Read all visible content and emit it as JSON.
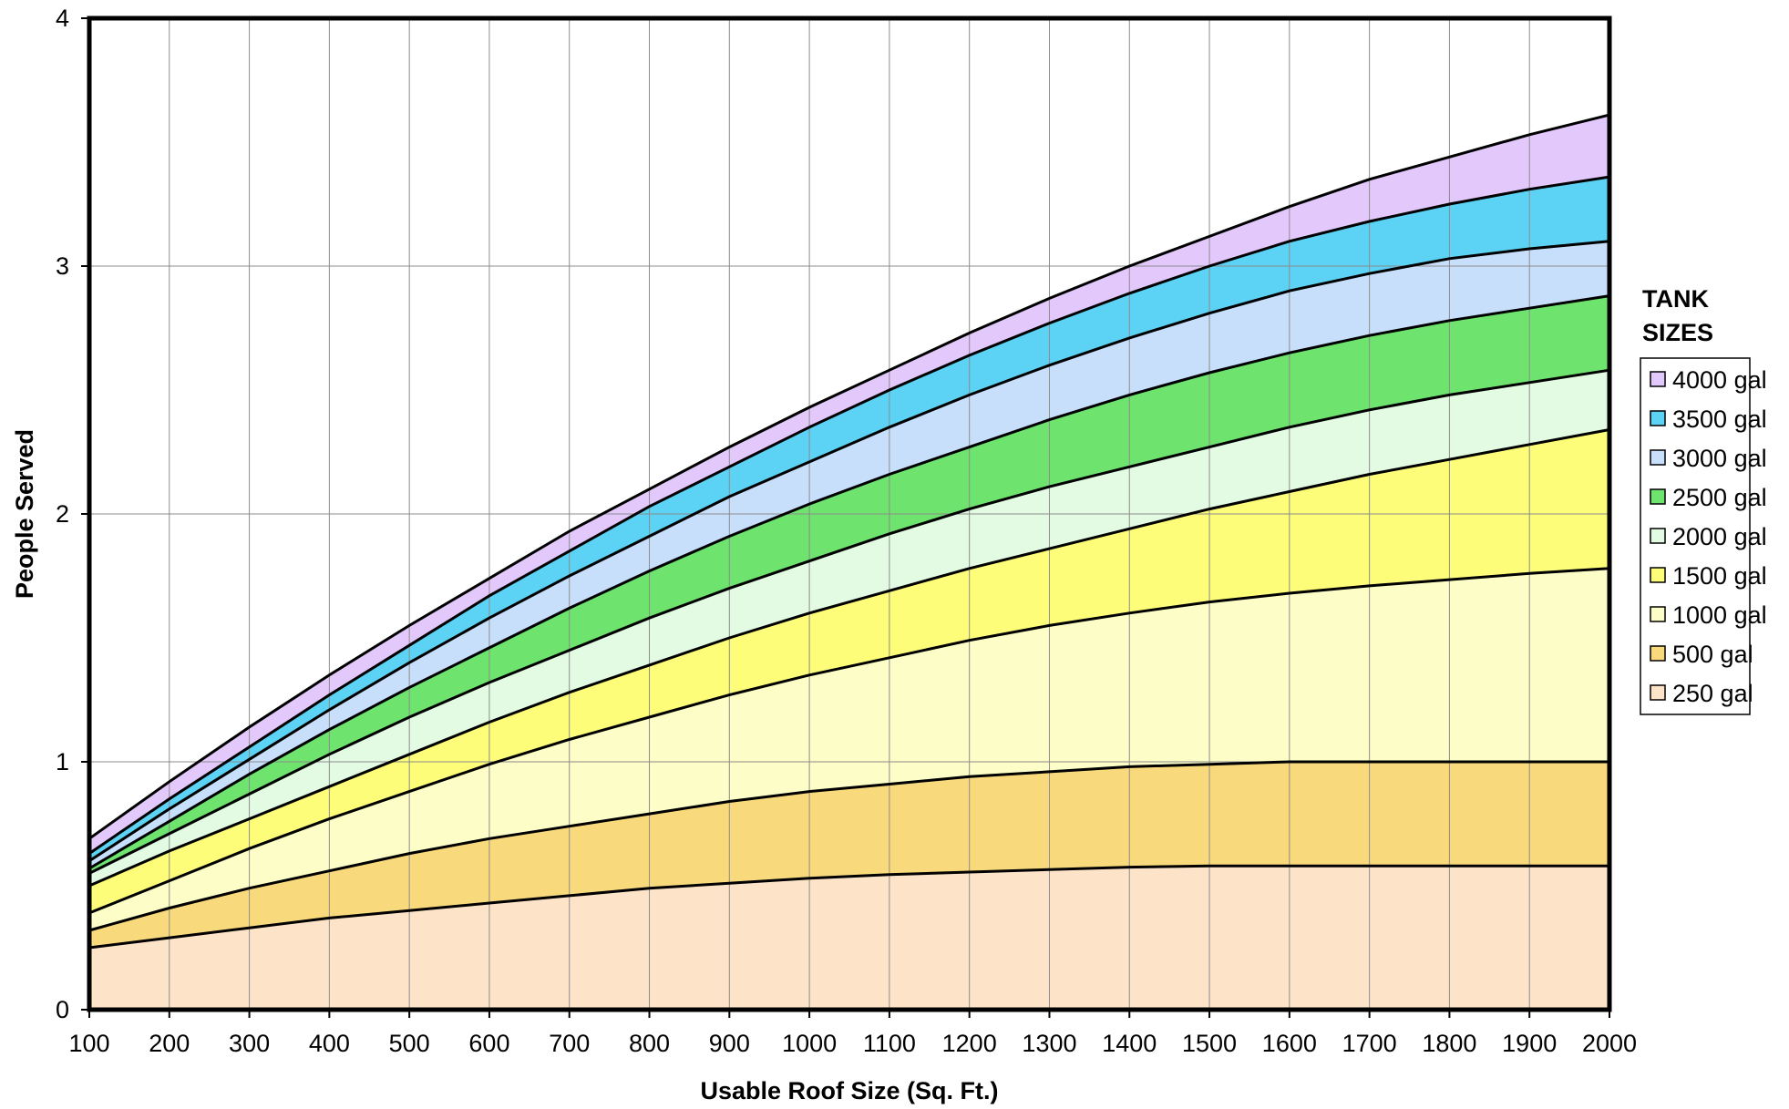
{
  "chart_data": {
    "type": "area",
    "xlabel": "Usable Roof Size (Sq. Ft.)",
    "ylabel": "People Served",
    "xlim": [
      100,
      2000
    ],
    "ylim": [
      0,
      4
    ],
    "x_ticks": [
      "100",
      "200",
      "300",
      "400",
      "500",
      "600",
      "700",
      "800",
      "900",
      "1000",
      "1100",
      "1200",
      "1300",
      "1400",
      "1500",
      "1600",
      "1700",
      "1800",
      "1900",
      "2000"
    ],
    "y_ticks": [
      "0",
      "1",
      "2",
      "3",
      "4"
    ],
    "grid": true,
    "legend": {
      "title_line1": "TANK",
      "title_line2": "SIZES",
      "placement": "right"
    },
    "x": [
      100,
      200,
      300,
      400,
      500,
      600,
      700,
      800,
      900,
      1000,
      1100,
      1200,
      1300,
      1400,
      1500,
      1600,
      1700,
      1800,
      1900,
      2000
    ],
    "series": [
      {
        "name": "250 gal",
        "color": "#fde3c8",
        "values": [
          0.25,
          0.29,
          0.33,
          0.37,
          0.4,
          0.43,
          0.46,
          0.49,
          0.51,
          0.53,
          0.545,
          0.555,
          0.565,
          0.575,
          0.58,
          0.58,
          0.58,
          0.58,
          0.58,
          0.58
        ]
      },
      {
        "name": "500 gal",
        "color": "#f8d97c",
        "values": [
          0.32,
          0.41,
          0.49,
          0.56,
          0.63,
          0.69,
          0.74,
          0.79,
          0.84,
          0.88,
          0.91,
          0.94,
          0.96,
          0.98,
          0.99,
          1.0,
          1.0,
          1.0,
          1.0,
          1.0
        ]
      },
      {
        "name": "1000 gal",
        "color": "#fdfdc8",
        "values": [
          0.39,
          0.52,
          0.65,
          0.77,
          0.88,
          0.99,
          1.09,
          1.18,
          1.27,
          1.35,
          1.42,
          1.49,
          1.55,
          1.6,
          1.645,
          1.68,
          1.71,
          1.735,
          1.76,
          1.78
        ]
      },
      {
        "name": "1500 gal",
        "color": "#fdfd7a",
        "values": [
          0.5,
          0.64,
          0.77,
          0.9,
          1.03,
          1.16,
          1.28,
          1.39,
          1.5,
          1.6,
          1.69,
          1.78,
          1.86,
          1.94,
          2.02,
          2.09,
          2.16,
          2.22,
          2.28,
          2.34
        ]
      },
      {
        "name": "2000 gal",
        "color": "#e3fbe3",
        "values": [
          0.55,
          0.71,
          0.87,
          1.03,
          1.18,
          1.32,
          1.45,
          1.58,
          1.7,
          1.81,
          1.92,
          2.02,
          2.11,
          2.19,
          2.27,
          2.35,
          2.42,
          2.48,
          2.53,
          2.58
        ]
      },
      {
        "name": "2500 gal",
        "color": "#6ee36e",
        "values": [
          0.57,
          0.76,
          0.95,
          1.13,
          1.3,
          1.46,
          1.62,
          1.77,
          1.91,
          2.04,
          2.16,
          2.27,
          2.38,
          2.48,
          2.57,
          2.65,
          2.72,
          2.78,
          2.83,
          2.88
        ]
      },
      {
        "name": "3000 gal",
        "color": "#c8dffb",
        "values": [
          0.6,
          0.81,
          1.01,
          1.21,
          1.4,
          1.58,
          1.75,
          1.91,
          2.07,
          2.21,
          2.35,
          2.48,
          2.6,
          2.71,
          2.81,
          2.9,
          2.97,
          3.03,
          3.07,
          3.1
        ]
      },
      {
        "name": "3500 gal",
        "color": "#5cd2f4",
        "values": [
          0.63,
          0.85,
          1.06,
          1.27,
          1.47,
          1.67,
          1.85,
          2.03,
          2.19,
          2.35,
          2.5,
          2.64,
          2.77,
          2.89,
          3.0,
          3.1,
          3.18,
          3.25,
          3.31,
          3.36
        ]
      },
      {
        "name": "4000 gal",
        "color": "#e3c8fb",
        "values": [
          0.69,
          0.92,
          1.14,
          1.35,
          1.55,
          1.74,
          1.93,
          2.1,
          2.27,
          2.43,
          2.58,
          2.73,
          2.87,
          3.0,
          3.12,
          3.24,
          3.35,
          3.44,
          3.53,
          3.61
        ]
      }
    ]
  }
}
